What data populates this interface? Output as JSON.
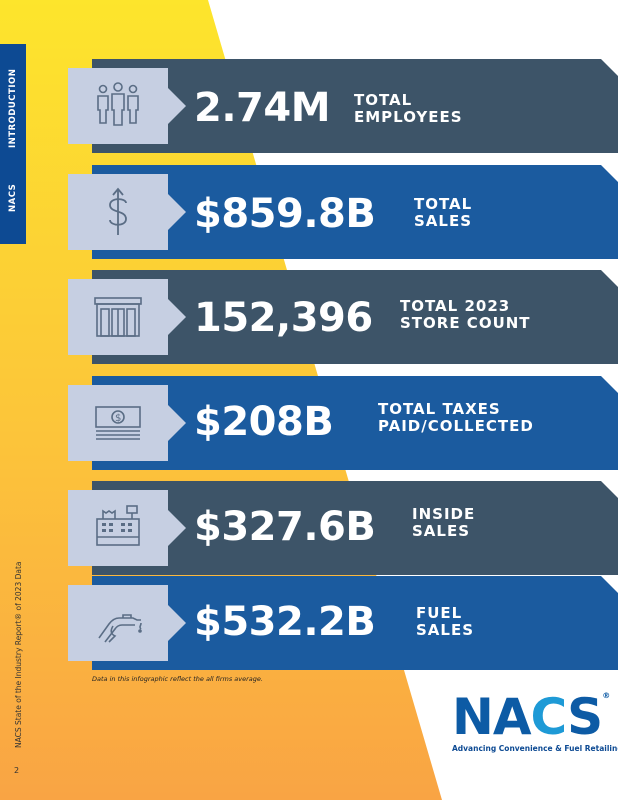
{
  "sidebar": {
    "brand": "NACS",
    "section": "INTRODUCTION"
  },
  "footer": {
    "source": "NACS State of the Industry Report® of 2023 Data",
    "page_number": "2"
  },
  "stats": [
    {
      "value": "2.74M",
      "label_line1": "TOTAL",
      "label_line2": "EMPLOYEES",
      "icon": "employees-icon"
    },
    {
      "value": "$859.8B",
      "label_line1": "TOTAL",
      "label_line2": "SALES",
      "icon": "dollar-sign-icon"
    },
    {
      "value": "152,396",
      "label_line1": "TOTAL 2023",
      "label_line2": "STORE COUNT",
      "icon": "storefront-icon"
    },
    {
      "value": "$208B",
      "label_line1": "TOTAL TAXES",
      "label_line2": "PAID/COLLECTED",
      "icon": "cash-icon"
    },
    {
      "value": "$327.6B",
      "label_line1": "INSIDE",
      "label_line2": "SALES",
      "icon": "cash-register-icon"
    },
    {
      "value": "$532.2B",
      "label_line1": "FUEL",
      "label_line2": "SALES",
      "icon": "fuel-nozzle-icon"
    }
  ],
  "note": "Data in this infographic reflect the all firms average.",
  "logo": {
    "word_start": "NA",
    "word_c": "C",
    "word_end": "S",
    "tagline": "Advancing Convenience & Fuel Retailing"
  },
  "colors": {
    "slate": "#3d5468",
    "blue": "#1b5b9f",
    "icon_box": "#c6cfe2",
    "yellow": "#fde52c",
    "orange": "#f9a444",
    "navy": "#0d4a93"
  }
}
